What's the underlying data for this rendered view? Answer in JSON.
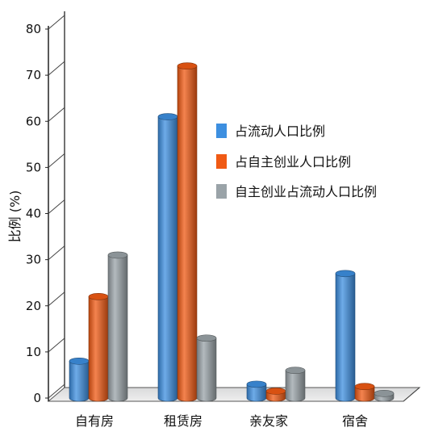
{
  "chart_data": {
    "type": "bar",
    "categories": [
      "自有房",
      "租赁房",
      "亲友家",
      "宿舍"
    ],
    "series": [
      {
        "name": "占流动人口比例",
        "values": [
          8,
          61,
          3,
          27
        ],
        "color": "#3d8fe0"
      },
      {
        "name": "占自主创业人口比例",
        "values": [
          22,
          72,
          1.5,
          2.5
        ],
        "color": "#f05a14"
      },
      {
        "name": "自主创业占流动人口比例",
        "values": [
          31,
          13,
          6,
          1
        ],
        "color": "#9aa3a8"
      }
    ],
    "ylabel": "比例 (%)",
    "xlabel": "",
    "ylim": [
      0,
      80
    ],
    "yticks": [
      0,
      10,
      20,
      30,
      40,
      50,
      60,
      70,
      80
    ],
    "grid": "none",
    "legend_position": "center-right",
    "style": "3d-cylinder"
  }
}
